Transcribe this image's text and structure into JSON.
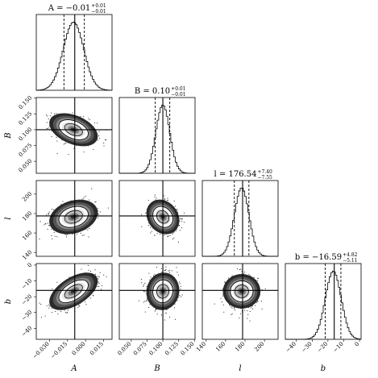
{
  "chart_data": {
    "type": "corner",
    "parameters": [
      {
        "key": "A",
        "label": "A",
        "median": -0.01,
        "err_plus": 0.01,
        "err_minus": 0.01,
        "title_main": "A = −0.01",
        "title_plus": "+0.01",
        "title_minus": "−0.01",
        "range": [
          -0.041,
          0.022
        ],
        "sigma": 0.0085,
        "truth": -0.009,
        "quantiles": [
          -0.018,
          -0.001
        ],
        "ticks": [
          -0.03,
          -0.015,
          0.0,
          0.015
        ],
        "tick_labels": [
          "−0.030",
          "−0.015",
          "0.000",
          "0.015"
        ]
      },
      {
        "key": "B",
        "label": "B",
        "median": 0.1,
        "err_plus": 0.01,
        "err_minus": 0.01,
        "title_main": "B = 0.10",
        "title_plus": "+0.01",
        "title_minus": "−0.01",
        "range": [
          0.031,
          0.151
        ],
        "sigma": 0.011,
        "truth": 0.1,
        "quantiles": [
          0.088,
          0.111
        ],
        "ticks": [
          0.05,
          0.075,
          0.1,
          0.125,
          0.15
        ],
        "tick_labels": [
          "0.050",
          "0.075",
          "0.100",
          "0.125",
          "0.150"
        ]
      },
      {
        "key": "l",
        "label": "l",
        "median": 176.54,
        "err_plus": 7.4,
        "err_minus": 7.55,
        "title_main": "l = 176.54",
        "title_plus": "+7.40",
        "title_minus": "−7.55",
        "range": [
          136,
          214
        ],
        "sigma": 7.5,
        "truth": 177.5,
        "quantiles": [
          169.0,
          184.0
        ],
        "ticks": [
          140,
          160,
          180,
          200
        ],
        "tick_labels": [
          "140",
          "160",
          "180",
          "200"
        ]
      },
      {
        "key": "b",
        "label": "b",
        "median": -16.59,
        "err_plus": 4.82,
        "err_minus": 5.11,
        "title_main": "b = −16.59",
        "title_plus": "+4.82",
        "title_minus": "−5.11",
        "range": [
          -47,
          1
        ],
        "sigma": 5.0,
        "truth": -16.0,
        "quantiles": [
          -21.7,
          -11.8
        ],
        "ticks": [
          -40,
          -30,
          -20,
          -10,
          0
        ],
        "tick_labels": [
          "−40",
          "−30",
          "−20",
          "−10",
          "0"
        ]
      }
    ],
    "correlations": [
      {
        "row": 1,
        "col": 0,
        "rho": -0.4
      },
      {
        "row": 2,
        "col": 0,
        "rho": 0.25
      },
      {
        "row": 2,
        "col": 1,
        "rho": -0.2
      },
      {
        "row": 3,
        "col": 0,
        "rho": 0.55
      },
      {
        "row": 3,
        "col": 1,
        "rho": 0.05
      },
      {
        "row": 3,
        "col": 2,
        "rho": 0.0
      }
    ],
    "contour_levels_sigma": [
      1,
      2
    ],
    "histogram_bins": 50
  }
}
